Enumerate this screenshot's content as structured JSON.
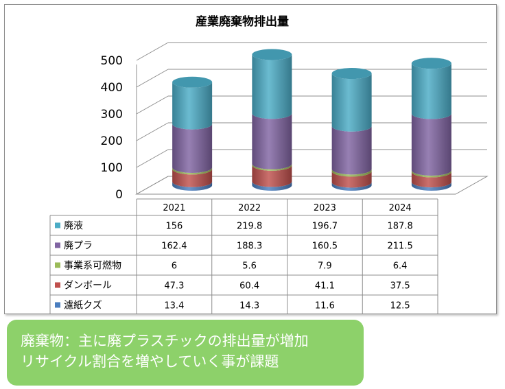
{
  "chart_data": {
    "type": "bar",
    "title": "産業廃棄物排出量",
    "categories": [
      "2021",
      "2022",
      "2023",
      "2024"
    ],
    "ylim": [
      0,
      500
    ],
    "y_ticks": [
      "0",
      "100",
      "200",
      "300",
      "400",
      "500"
    ],
    "stacked": true,
    "three_d": true,
    "grid": true,
    "legend": "data-table",
    "series": [
      {
        "name": "濾紙クズ",
        "values": [
          13.4,
          14.3,
          11.6,
          12.5
        ],
        "labels": [
          "13.4",
          "14.3",
          "11.6",
          "12.5"
        ],
        "color": "#4a7ebf"
      },
      {
        "name": "ダンボール",
        "values": [
          47.3,
          60.4,
          41.1,
          37.5
        ],
        "labels": [
          "47.3",
          "60.4",
          "41.1",
          "37.5"
        ],
        "color": "#c0504d"
      },
      {
        "name": "事業系可燃物",
        "values": [
          6,
          5.6,
          7.9,
          6.4
        ],
        "labels": [
          "6",
          "5.6",
          "7.9",
          "6.4"
        ],
        "color": "#9bbb59"
      },
      {
        "name": "廃プラ",
        "values": [
          162.4,
          188.3,
          160.5,
          211.5
        ],
        "labels": [
          "162.4",
          "188.3",
          "160.5",
          "211.5"
        ],
        "color": "#8064a2"
      },
      {
        "name": "廃液",
        "values": [
          156,
          219.8,
          196.7,
          187.8
        ],
        "labels": [
          "156",
          "219.8",
          "196.7",
          "187.8"
        ],
        "color": "#4bacc6"
      }
    ],
    "table_order": [
      "廃液",
      "廃プラ",
      "事業系可燃物",
      "ダンボール",
      "濾紙クズ"
    ]
  },
  "note": {
    "line1": "廃棄物：主に廃プラスチックの排出量が増加",
    "line2": "リサイクル割合を増やしていく事が課題"
  }
}
